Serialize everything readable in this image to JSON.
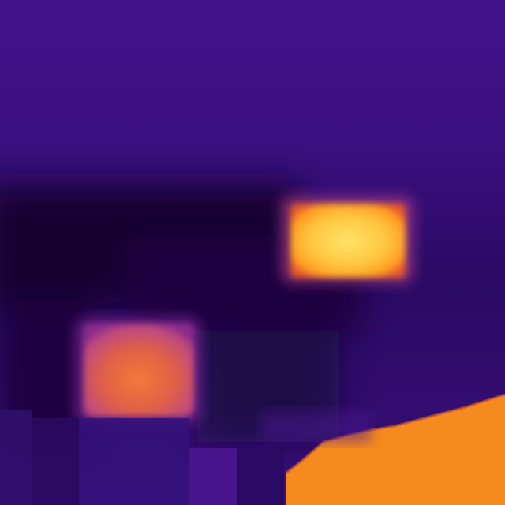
{
  "image": {
    "type": "thermal-camera-view",
    "palette": "inferno",
    "colors": {
      "background_upper": "#3f1182",
      "background_mid": "#2c0a68",
      "dark_shadow": "#160534",
      "hot_core": "#ffd95a",
      "hot_edge": "#ff9a24",
      "warm_core": "#f0703c",
      "warm_edge": "#b8448a",
      "floor_hot": "#f5891e"
    },
    "regions": [
      {
        "name": "hot-window",
        "description_level": "hottest"
      },
      {
        "name": "warm-window",
        "description_level": "warm"
      },
      {
        "name": "hot-floor-area",
        "description_level": "hot"
      },
      {
        "name": "cold-shadow-band",
        "description_level": "coldest"
      }
    ]
  }
}
